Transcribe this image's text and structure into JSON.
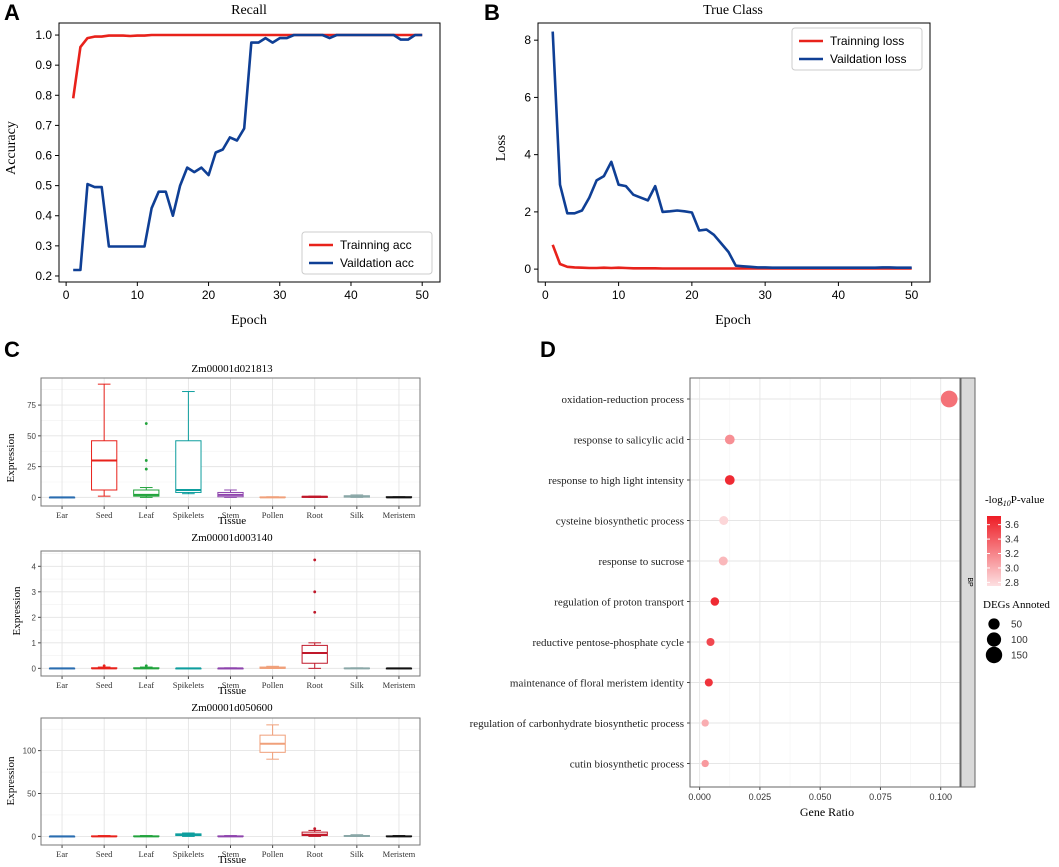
{
  "panels": {
    "a": "A",
    "b": "B",
    "c": "C",
    "d": "D"
  },
  "chart_data": [
    {
      "id": "A",
      "type": "line",
      "title": "Recall",
      "xlabel": "Epoch",
      "ylabel": "Accuracy",
      "xlim": [
        -1,
        52.5
      ],
      "ylim": [
        0.18,
        1.04
      ],
      "xticks": [
        0,
        10,
        20,
        30,
        40,
        50
      ],
      "yticks": [
        0.2,
        0.3,
        0.4,
        0.5,
        0.6,
        0.7,
        0.8,
        0.9,
        1.0
      ],
      "ytick_labels": [
        "0.2",
        "0.3",
        "0.4",
        "0.5",
        "0.6",
        "0.7",
        "0.8",
        "0.9",
        "1.0"
      ],
      "legend_position": "bottom-right",
      "series": [
        {
          "name": "Trainning acc",
          "color": "#e8221b",
          "x": [
            1,
            2,
            3,
            4,
            5,
            6,
            7,
            8,
            9,
            10,
            11,
            12,
            13,
            14,
            15,
            16,
            17,
            18,
            19,
            20,
            21,
            22,
            23,
            24,
            25,
            26,
            27,
            28,
            29,
            30,
            31,
            32,
            33,
            34,
            35,
            36,
            37,
            38,
            39,
            40,
            41,
            42,
            43,
            44,
            45,
            46,
            47,
            48,
            49,
            50
          ],
          "y": [
            0.79,
            0.96,
            0.99,
            0.995,
            0.995,
            0.998,
            0.998,
            0.998,
            0.997,
            0.998,
            0.998,
            1.0,
            1.0,
            1.0,
            1.0,
            1.0,
            1.0,
            1.0,
            1.0,
            1.0,
            1.0,
            1.0,
            1.0,
            1.0,
            1.0,
            1.0,
            1.0,
            1.0,
            1.0,
            1.0,
            1.0,
            1.0,
            1.0,
            1.0,
            1.0,
            1.0,
            1.0,
            1.0,
            1.0,
            1.0,
            1.0,
            1.0,
            1.0,
            1.0,
            1.0,
            1.0,
            1.0,
            1.0,
            1.0,
            1.0
          ]
        },
        {
          "name": "Vaildation acc",
          "color": "#0f3f95",
          "x": [
            1,
            2,
            3,
            4,
            5,
            6,
            7,
            8,
            9,
            10,
            11,
            12,
            13,
            14,
            15,
            16,
            17,
            18,
            19,
            20,
            21,
            22,
            23,
            24,
            25,
            26,
            27,
            28,
            29,
            30,
            31,
            32,
            33,
            34,
            35,
            36,
            37,
            38,
            39,
            40,
            41,
            42,
            43,
            44,
            45,
            46,
            47,
            48,
            49,
            50
          ],
          "y": [
            0.22,
            0.22,
            0.505,
            0.495,
            0.495,
            0.298,
            0.298,
            0.298,
            0.298,
            0.298,
            0.298,
            0.425,
            0.48,
            0.48,
            0.4,
            0.5,
            0.56,
            0.545,
            0.56,
            0.535,
            0.61,
            0.62,
            0.66,
            0.65,
            0.69,
            0.975,
            0.975,
            0.99,
            0.975,
            0.99,
            0.99,
            1.0,
            1.0,
            1.0,
            1.0,
            1.0,
            0.99,
            1.0,
            1.0,
            1.0,
            1.0,
            1.0,
            1.0,
            1.0,
            1.0,
            1.0,
            0.985,
            0.985,
            1.0,
            1.0
          ]
        }
      ]
    },
    {
      "id": "B",
      "type": "line",
      "title": "True Class",
      "xlabel": "Epoch",
      "ylabel": "Loss",
      "xlim": [
        -1,
        52.5
      ],
      "ylim": [
        -0.45,
        8.6
      ],
      "xticks": [
        0,
        10,
        20,
        30,
        40,
        50
      ],
      "yticks": [
        0,
        2,
        4,
        6,
        8
      ],
      "legend_position": "top-right",
      "series": [
        {
          "name": "Trainning loss",
          "color": "#e8221b",
          "x": [
            1,
            2,
            3,
            4,
            5,
            6,
            7,
            8,
            9,
            10,
            11,
            12,
            13,
            14,
            15,
            16,
            17,
            18,
            19,
            20,
            21,
            22,
            23,
            24,
            25,
            26,
            27,
            28,
            29,
            30,
            31,
            32,
            33,
            34,
            35,
            36,
            37,
            38,
            39,
            40,
            41,
            42,
            43,
            44,
            45,
            46,
            47,
            48,
            49,
            50
          ],
          "y": [
            0.85,
            0.18,
            0.08,
            0.06,
            0.05,
            0.04,
            0.04,
            0.05,
            0.04,
            0.05,
            0.04,
            0.03,
            0.03,
            0.03,
            0.03,
            0.02,
            0.02,
            0.02,
            0.02,
            0.02,
            0.02,
            0.02,
            0.02,
            0.02,
            0.02,
            0.02,
            0.02,
            0.02,
            0.02,
            0.02,
            0.02,
            0.02,
            0.02,
            0.02,
            0.02,
            0.02,
            0.02,
            0.02,
            0.02,
            0.02,
            0.02,
            0.02,
            0.02,
            0.02,
            0.02,
            0.02,
            0.02,
            0.02,
            0.02,
            0.02
          ]
        },
        {
          "name": "Vaildation loss",
          "color": "#0f3f95",
          "x": [
            1,
            2,
            3,
            4,
            5,
            6,
            7,
            8,
            9,
            10,
            11,
            12,
            13,
            14,
            15,
            16,
            17,
            18,
            19,
            20,
            21,
            22,
            23,
            24,
            25,
            26,
            27,
            28,
            29,
            30,
            31,
            32,
            33,
            34,
            35,
            36,
            37,
            38,
            39,
            40,
            41,
            42,
            43,
            44,
            45,
            46,
            47,
            48,
            49,
            50
          ],
          "y": [
            8.3,
            2.95,
            1.95,
            1.95,
            2.05,
            2.5,
            3.1,
            3.25,
            3.75,
            2.95,
            2.9,
            2.6,
            2.5,
            2.4,
            2.9,
            2.0,
            2.02,
            2.05,
            2.02,
            1.98,
            1.35,
            1.38,
            1.2,
            0.9,
            0.6,
            0.12,
            0.1,
            0.08,
            0.06,
            0.06,
            0.05,
            0.05,
            0.05,
            0.05,
            0.05,
            0.05,
            0.05,
            0.05,
            0.05,
            0.05,
            0.05,
            0.05,
            0.05,
            0.05,
            0.05,
            0.06,
            0.06,
            0.05,
            0.05,
            0.05
          ]
        }
      ]
    },
    {
      "id": "C1",
      "type": "box",
      "title": "Zm00001d021813",
      "xlabel": "Tissue",
      "ylabel": "Expression",
      "ylim": [
        -7,
        97
      ],
      "yticks": [
        0,
        25,
        50,
        75
      ],
      "categories": [
        "Ear",
        "Seed",
        "Leaf",
        "Spikelets",
        "Stem",
        "Pollen",
        "Root",
        "Silk",
        "Meristem"
      ],
      "colors": [
        "#2a6db0",
        "#e8221b",
        "#21a33c",
        "#0e9e9e",
        "#8e44ad",
        "#f0a07a",
        "#c0182a",
        "#8aa7a7",
        "#111111"
      ],
      "boxes": [
        {
          "min": 0,
          "q1": 0,
          "median": 0,
          "q3": 0,
          "max": 0,
          "outliers": []
        },
        {
          "min": 1,
          "q1": 6,
          "median": 30,
          "q3": 46,
          "max": 92,
          "outliers": []
        },
        {
          "min": 0,
          "q1": 1,
          "median": 2,
          "q3": 6,
          "max": 8,
          "outliers": [
            23,
            30,
            60
          ]
        },
        {
          "min": 3,
          "q1": 4,
          "median": 6,
          "q3": 46,
          "max": 86,
          "outliers": []
        },
        {
          "min": 0,
          "q1": 0.5,
          "median": 2,
          "q3": 4,
          "max": 6,
          "outliers": []
        },
        {
          "min": 0,
          "q1": 0,
          "median": 0,
          "q3": 0.3,
          "max": 0.5,
          "outliers": []
        },
        {
          "min": 0,
          "q1": 0,
          "median": 0.5,
          "q3": 0.8,
          "max": 1,
          "outliers": []
        },
        {
          "min": 0,
          "q1": 0.2,
          "median": 0.8,
          "q3": 1.3,
          "max": 2,
          "outliers": []
        },
        {
          "min": 0,
          "q1": 0,
          "median": 0,
          "q3": 0.5,
          "max": 0.5,
          "outliers": []
        }
      ]
    },
    {
      "id": "C2",
      "type": "box",
      "title": "Zm00001d003140",
      "xlabel": "Tissue",
      "ylabel": "Expression",
      "ylim": [
        -0.3,
        4.6
      ],
      "yticks": [
        0,
        1,
        2,
        3,
        4
      ],
      "categories": [
        "Ear",
        "Seed",
        "Leaf",
        "Spikelets",
        "Stem",
        "Pollen",
        "Root",
        "Silk",
        "Meristem"
      ],
      "colors": [
        "#2a6db0",
        "#e8221b",
        "#21a33c",
        "#0e9e9e",
        "#8e44ad",
        "#f0a07a",
        "#c0182a",
        "#8aa7a7",
        "#111111"
      ],
      "boxes": [
        {
          "min": 0,
          "q1": 0,
          "median": 0,
          "q3": 0,
          "max": 0,
          "outliers": []
        },
        {
          "min": 0,
          "q1": 0,
          "median": 0,
          "q3": 0.02,
          "max": 0.05,
          "outliers": [
            0.1
          ]
        },
        {
          "min": 0,
          "q1": 0,
          "median": 0,
          "q3": 0.02,
          "max": 0.05,
          "outliers": [
            0.1
          ]
        },
        {
          "min": 0,
          "q1": 0,
          "median": 0,
          "q3": 0,
          "max": 0,
          "outliers": []
        },
        {
          "min": 0,
          "q1": 0,
          "median": 0,
          "q3": 0,
          "max": 0.02,
          "outliers": []
        },
        {
          "min": 0,
          "q1": 0,
          "median": 0.02,
          "q3": 0.05,
          "max": 0.08,
          "outliers": []
        },
        {
          "min": 0,
          "q1": 0.2,
          "median": 0.6,
          "q3": 0.9,
          "max": 1.0,
          "outliers": [
            2.2,
            3.0,
            4.25
          ]
        },
        {
          "min": 0,
          "q1": 0,
          "median": 0,
          "q3": 0.01,
          "max": 0.02,
          "outliers": []
        },
        {
          "min": 0,
          "q1": 0,
          "median": 0,
          "q3": 0,
          "max": 0,
          "outliers": []
        }
      ]
    },
    {
      "id": "C3",
      "type": "box",
      "title": "Zm00001d050600",
      "xlabel": "Tissue",
      "ylabel": "Expression",
      "ylim": [
        -10,
        138
      ],
      "yticks": [
        0,
        50,
        100
      ],
      "categories": [
        "Ear",
        "Seed",
        "Leaf",
        "Spikelets",
        "Stem",
        "Pollen",
        "Root",
        "Silk",
        "Meristem"
      ],
      "colors": [
        "#2a6db0",
        "#e8221b",
        "#21a33c",
        "#0e9e9e",
        "#8e44ad",
        "#f0a07a",
        "#c0182a",
        "#8aa7a7",
        "#111111"
      ],
      "boxes": [
        {
          "min": 0,
          "q1": 0,
          "median": 0,
          "q3": 0,
          "max": 0,
          "outliers": []
        },
        {
          "min": 0,
          "q1": 0,
          "median": 0,
          "q3": 0.5,
          "max": 1,
          "outliers": []
        },
        {
          "min": 0,
          "q1": 0,
          "median": 0,
          "q3": 0.5,
          "max": 1,
          "outliers": []
        },
        {
          "min": 0,
          "q1": 1,
          "median": 2,
          "q3": 3,
          "max": 4,
          "outliers": []
        },
        {
          "min": 0,
          "q1": 0,
          "median": 0,
          "q3": 0.5,
          "max": 1,
          "outliers": []
        },
        {
          "min": 90,
          "q1": 98,
          "median": 108,
          "q3": 118,
          "max": 130,
          "outliers": []
        },
        {
          "min": 0,
          "q1": 1,
          "median": 2,
          "q3": 5,
          "max": 7,
          "outliers": [
            9
          ]
        },
        {
          "min": 0,
          "q1": 0,
          "median": 0.5,
          "q3": 1,
          "max": 2,
          "outliers": []
        },
        {
          "min": 0,
          "q1": 0,
          "median": 0,
          "q3": 0.5,
          "max": 1,
          "outliers": []
        }
      ]
    },
    {
      "id": "D",
      "type": "scatter",
      "xlabel": "Gene Ratio",
      "xlim": [
        -0.004,
        0.108
      ],
      "xticks": [
        0.0,
        0.025,
        0.05,
        0.075,
        0.1
      ],
      "xtick_labels": [
        "0.000",
        "0.025",
        "0.050",
        "0.075",
        "0.100"
      ],
      "facet_label": "BP",
      "terms": [
        {
          "name": "oxidation-reduction process",
          "ratio": 0.1035,
          "neglogp": 3.3,
          "count": 160
        },
        {
          "name": "response to salicylic acid",
          "ratio": 0.0125,
          "neglogp": 3.15,
          "count": 30
        },
        {
          "name": "response to high light intensity",
          "ratio": 0.0125,
          "neglogp": 3.65,
          "count": 30
        },
        {
          "name": "cysteine biosynthetic process",
          "ratio": 0.01,
          "neglogp": 2.8,
          "count": 22
        },
        {
          "name": "response to sucrose",
          "ratio": 0.0098,
          "neglogp": 2.95,
          "count": 22
        },
        {
          "name": "regulation of proton transport",
          "ratio": 0.0063,
          "neglogp": 3.65,
          "count": 18
        },
        {
          "name": "reductive pentose-phosphate cycle",
          "ratio": 0.0045,
          "neglogp": 3.5,
          "count": 14
        },
        {
          "name": "maintenance of floral meristem identity",
          "ratio": 0.0038,
          "neglogp": 3.6,
          "count": 14
        },
        {
          "name": "regulation of carbonhydrate biosynthetic process",
          "ratio": 0.0023,
          "neglogp": 3.0,
          "count": 9
        },
        {
          "name": "cutin biosynthetic process",
          "ratio": 0.0023,
          "neglogp": 3.1,
          "count": 9
        }
      ],
      "color_legend": {
        "title_prefix": "-log",
        "title_sub": "10",
        "title_suffix": "P-value",
        "ticks": [
          "3.6",
          "3.4",
          "3.2",
          "3.0",
          "2.8"
        ],
        "min": 2.75,
        "max": 3.72,
        "low_color": "#fde0e2",
        "high_color": "#ee1c25"
      },
      "size_legend": {
        "title": "DEGs Annoted",
        "ticks": [
          "50",
          "100",
          "150"
        ],
        "values": [
          50,
          100,
          150
        ]
      }
    }
  ]
}
